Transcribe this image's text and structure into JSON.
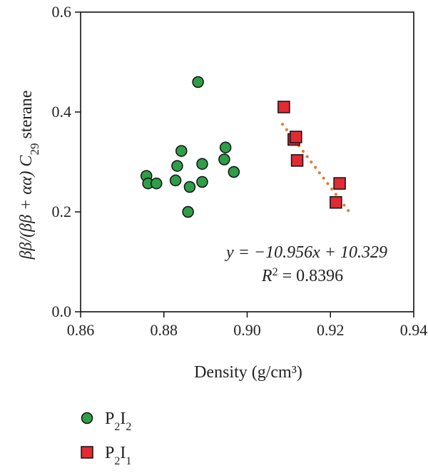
{
  "chart_data": {
    "type": "scatter",
    "xlabel": "Density (g/cm³)",
    "ylabel_parts": {
      "prefix": "ββ/(ββ + αα) C",
      "subscript": "29",
      "suffix": " sterane"
    },
    "xlim": [
      0.86,
      0.94
    ],
    "ylim": [
      0.0,
      0.6
    ],
    "x_ticks": [
      "0.86",
      "0.88",
      "0.90",
      "0.92",
      "0.94"
    ],
    "y_ticks": [
      "0.0",
      "0.2",
      "0.4",
      "0.6"
    ],
    "x_tick_values": [
      0.86,
      0.88,
      0.9,
      0.92,
      0.94
    ],
    "y_tick_values": [
      0.0,
      0.2,
      0.4,
      0.6
    ],
    "grid": false,
    "series": [
      {
        "legend_main": "P",
        "legend_sub1": "2",
        "legend_mid": "I",
        "legend_sub2": "2",
        "marker": "circle",
        "color": "#2e9e48",
        "points": [
          [
            0.8758,
            0.272
          ],
          [
            0.8762,
            0.257
          ],
          [
            0.8782,
            0.257
          ],
          [
            0.8828,
            0.263
          ],
          [
            0.8832,
            0.292
          ],
          [
            0.8842,
            0.322
          ],
          [
            0.8858,
            0.2
          ],
          [
            0.8862,
            0.25
          ],
          [
            0.8882,
            0.46
          ],
          [
            0.8892,
            0.26
          ],
          [
            0.8892,
            0.296
          ],
          [
            0.8945,
            0.305
          ],
          [
            0.8948,
            0.329
          ],
          [
            0.8968,
            0.28
          ]
        ]
      },
      {
        "legend_main": "P",
        "legend_sub1": "2",
        "legend_mid": "I",
        "legend_sub2": "1",
        "marker": "square",
        "color": "#e02b35",
        "points": [
          [
            0.9088,
            0.41
          ],
          [
            0.9112,
            0.345
          ],
          [
            0.9117,
            0.35
          ],
          [
            0.912,
            0.303
          ],
          [
            0.9213,
            0.219
          ],
          [
            0.9222,
            0.257
          ]
        ]
      }
    ],
    "trendline": {
      "style": "dotted",
      "color": "#e07b3a",
      "slope": -10.956,
      "intercept": 10.329,
      "x_range": [
        0.9085,
        0.9248
      ]
    },
    "annotations": {
      "equation": "y = −10.956x + 10.329",
      "r2_label": "R",
      "r2_sup": "2",
      "r2_value": " = 0.8396"
    }
  }
}
